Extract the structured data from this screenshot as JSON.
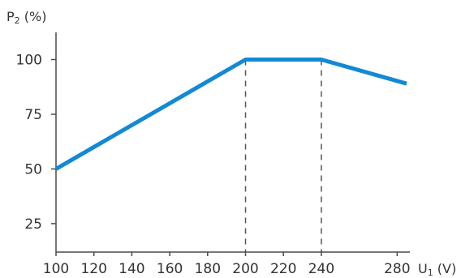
{
  "chart_data": {
    "type": "line",
    "title": "",
    "ylabel": {
      "main": "P",
      "sub": "2",
      "unit": " (%)"
    },
    "xlabel": {
      "main": "U",
      "sub": "1",
      "unit": " (V)"
    },
    "xlim": [
      100,
      285
    ],
    "ylim": [
      12,
      105
    ],
    "x_ticks": [
      100,
      120,
      140,
      160,
      180,
      200,
      220,
      240,
      280
    ],
    "x_tick_labels": [
      "100",
      "120",
      "140",
      "160",
      "180",
      "200",
      "220",
      "240",
      "280"
    ],
    "y_ticks": [
      25,
      50,
      75,
      100
    ],
    "y_tick_labels": [
      "25",
      "50",
      "75",
      "100"
    ],
    "grid": false,
    "series": [
      {
        "color": "#1289d4",
        "x": [
          100,
          200,
          240,
          285
        ],
        "y": [
          50,
          100,
          100,
          89
        ]
      }
    ],
    "guide_lines_at_x": [
      200,
      240
    ]
  }
}
